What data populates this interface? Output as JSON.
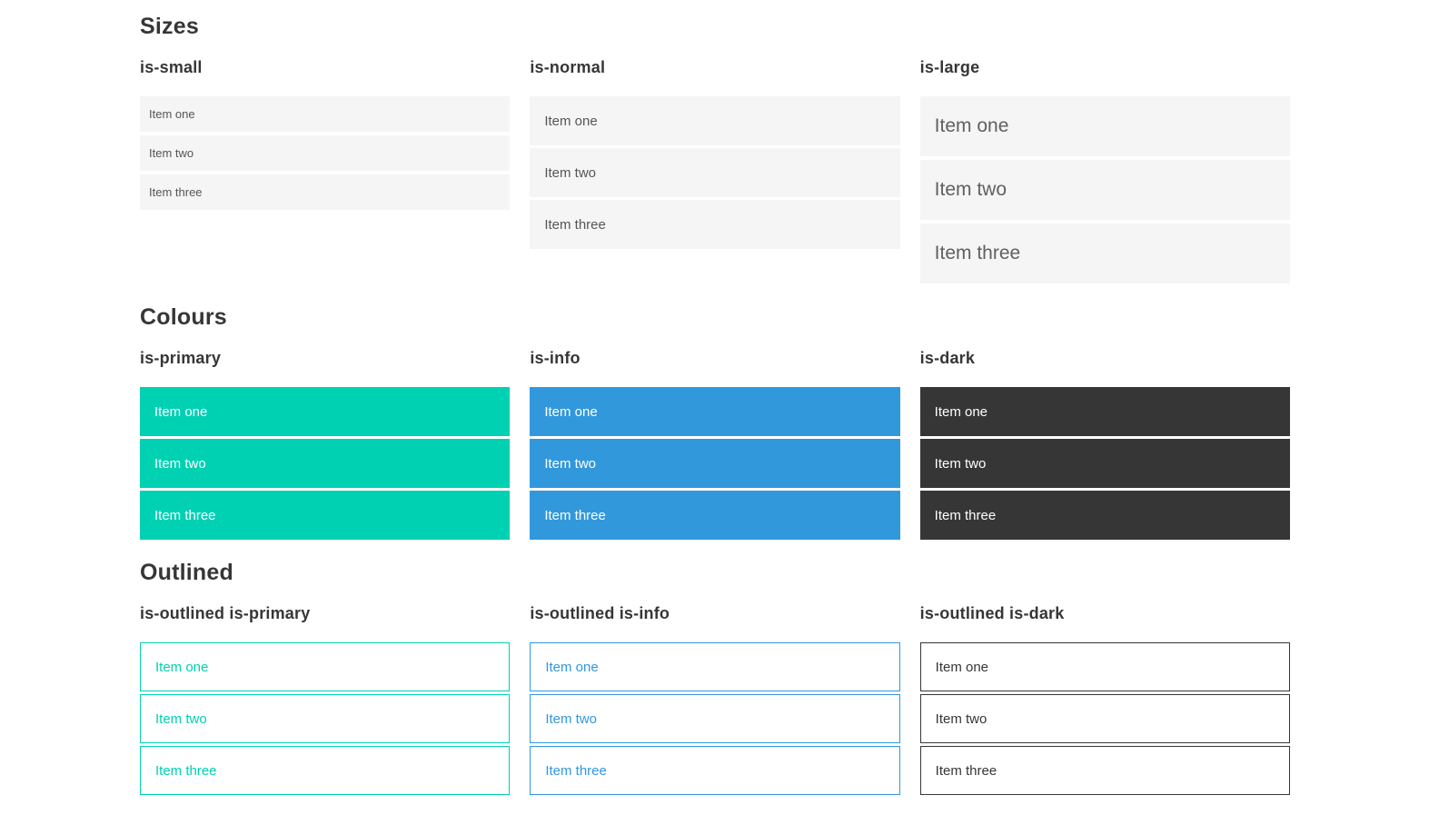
{
  "colors": {
    "primary": "#00d1b2",
    "info": "#3298dc",
    "dark": "#363636",
    "item-bg": "#f5f5f5",
    "item-text": "#555555",
    "heading": "#363636"
  },
  "sections": [
    {
      "title": "Sizes",
      "groups": [
        {
          "label": "is-small",
          "variant": "small",
          "items": [
            "Item one",
            "Item two",
            "Item three"
          ]
        },
        {
          "label": "is-normal",
          "variant": "normal",
          "items": [
            "Item one",
            "Item two",
            "Item three"
          ]
        },
        {
          "label": "is-large",
          "variant": "large",
          "items": [
            "Item one",
            "Item two",
            "Item three"
          ]
        }
      ]
    },
    {
      "title": "Colours",
      "groups": [
        {
          "label": "is-primary",
          "variant": "primary",
          "items": [
            "Item one",
            "Item two",
            "Item three"
          ]
        },
        {
          "label": "is-info",
          "variant": "info",
          "items": [
            "Item one",
            "Item two",
            "Item three"
          ]
        },
        {
          "label": "is-dark",
          "variant": "dark",
          "items": [
            "Item one",
            "Item two",
            "Item three"
          ]
        }
      ]
    },
    {
      "title": "Outlined",
      "groups": [
        {
          "label": "is-outlined is-primary",
          "variant": "outlined-primary",
          "items": [
            "Item one",
            "Item two",
            "Item three"
          ]
        },
        {
          "label": "is-outlined is-info",
          "variant": "outlined-info",
          "items": [
            "Item one",
            "Item two",
            "Item three"
          ]
        },
        {
          "label": "is-outlined is-dark",
          "variant": "outlined-dark",
          "items": [
            "Item one",
            "Item two",
            "Item three"
          ]
        }
      ]
    }
  ]
}
